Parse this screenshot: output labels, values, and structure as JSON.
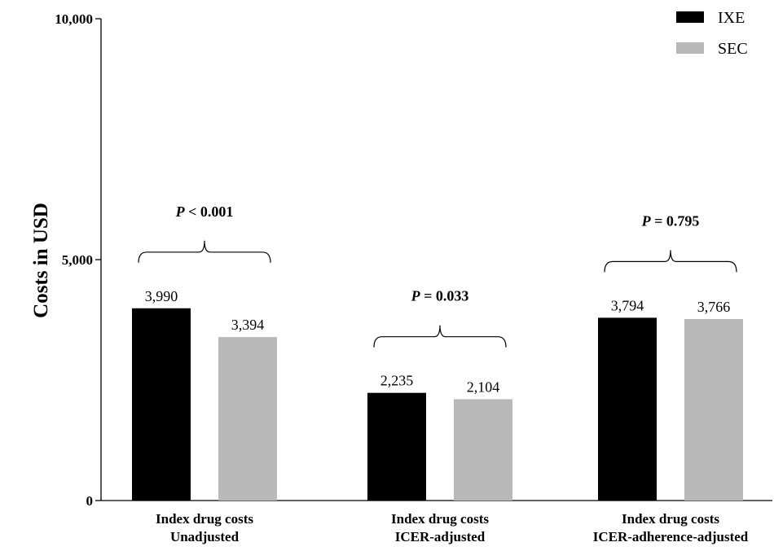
{
  "chart_data": {
    "type": "bar",
    "title": "",
    "ylabel": "Costs in USD",
    "xlabel": "",
    "ylim": [
      0,
      10000
    ],
    "yticks": [
      0,
      5000,
      10000
    ],
    "ytick_labels": [
      "0",
      "5,000",
      "10,000"
    ],
    "categories": [
      [
        "Index drug costs",
        "Unadjusted"
      ],
      [
        "Index drug costs",
        "ICER-adjusted"
      ],
      [
        "Index drug costs",
        "ICER-adherence-adjusted"
      ]
    ],
    "series": [
      {
        "name": "IXE",
        "color": "#000000",
        "values": [
          3990,
          2235,
          3794
        ],
        "labels": [
          "3,990",
          "2,235",
          "3,794"
        ]
      },
      {
        "name": "SEC",
        "color": "#b8b8b8",
        "values": [
          3394,
          2104,
          3766
        ],
        "labels": [
          "3,394",
          "2,104",
          "3,766"
        ]
      }
    ],
    "annotations": [
      {
        "prefix": "P",
        "rest": " < 0.001"
      },
      {
        "prefix": "P",
        "rest": " = 0.033"
      },
      {
        "prefix": "P",
        "rest": " = 0.795"
      }
    ],
    "legend_position": "top-right",
    "grid": false
  }
}
